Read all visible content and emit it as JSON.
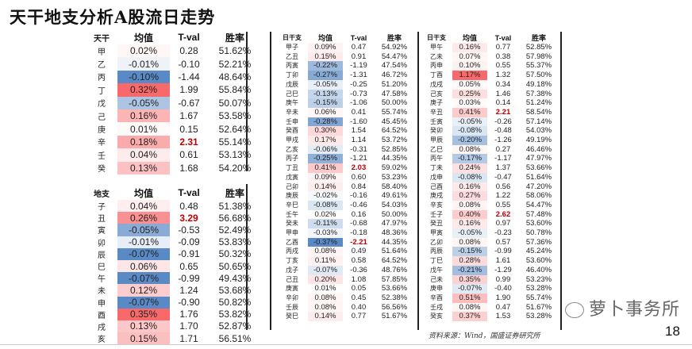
{
  "title": "天干地支分析A股流日走势",
  "colors": {
    "positive": "#f8696b",
    "negative": "#5a8ac6",
    "significant_text": "#c00000"
  },
  "tables": {
    "tiangan": {
      "headers": [
        "天干",
        "均值",
        "T-val",
        "胜率"
      ],
      "rows": [
        [
          "甲",
          "0.02%",
          "0.28",
          "51.62%"
        ],
        [
          "乙",
          "-0.01%",
          "-0.10",
          "52.21%"
        ],
        [
          "丙",
          "-0.10%",
          "-1.44",
          "48.64%"
        ],
        [
          "丁",
          "0.32%",
          "1.99",
          "55.84%"
        ],
        [
          "戊",
          "-0.05%",
          "-0.67",
          "50.07%"
        ],
        [
          "己",
          "0.16%",
          "1.67",
          "53.58%"
        ],
        [
          "庚",
          "0.01%",
          "0.15",
          "52.64%"
        ],
        [
          "辛",
          "0.18%",
          "2.31",
          "55.14%"
        ],
        [
          "壬",
          "0.04%",
          "0.61",
          "53.13%"
        ],
        [
          "癸",
          "0.13%",
          "1.68",
          "54.20%"
        ]
      ]
    },
    "dizhi": {
      "headers": [
        "地支",
        "均值",
        "T-val",
        "胜率"
      ],
      "rows": [
        [
          "子",
          "0.04%",
          "0.48",
          "51.38%"
        ],
        [
          "丑",
          "0.26%",
          "3.29",
          "56.68%"
        ],
        [
          "寅",
          "-0.05%",
          "-0.53",
          "52.49%"
        ],
        [
          "卯",
          "-0.01%",
          "-0.09",
          "53.83%"
        ],
        [
          "辰",
          "-0.07%",
          "-0.91",
          "50.32%"
        ],
        [
          "巳",
          "0.06%",
          "0.65",
          "50.65%"
        ],
        [
          "午",
          "-0.07%",
          "-0.99",
          "49.43%"
        ],
        [
          "未",
          "0.12%",
          "1.24",
          "53.68%"
        ],
        [
          "申",
          "-0.07%",
          "-0.90",
          "50.82%"
        ],
        [
          "酉",
          "0.35%",
          "1.76",
          "53.82%"
        ],
        [
          "戌",
          "0.13%",
          "1.70",
          "52.87%"
        ],
        [
          "亥",
          "0.15%",
          "1.71",
          "56.51%"
        ]
      ]
    },
    "ganzhi_1": {
      "headers": [
        "日干支",
        "均值",
        "T-val",
        "胜率"
      ],
      "rows": [
        [
          "甲子",
          "0.09%",
          "0.47",
          "54.92%"
        ],
        [
          "乙丑",
          "0.15%",
          "0.91",
          "54.47%"
        ],
        [
          "丙寅",
          "-0.22%",
          "-1.19",
          "47.54%"
        ],
        [
          "丁卯",
          "-0.27%",
          "-1.31",
          "46.72%"
        ],
        [
          "戊辰",
          "-0.05%",
          "-0.25",
          "51.20%"
        ],
        [
          "己巳",
          "-0.13%",
          "-0.73",
          "47.58%"
        ],
        [
          "庚午",
          "-0.15%",
          "-1.06",
          "50.00%"
        ],
        [
          "辛未",
          "0.06%",
          "0.41",
          "55.74%"
        ],
        [
          "壬申",
          "-0.28%",
          "-1.60",
          "45.45%"
        ],
        [
          "癸酉",
          "0.30%",
          "1.54",
          "64.52%"
        ],
        [
          "甲戌",
          "0.17%",
          "1.14",
          "53.72%"
        ],
        [
          "乙亥",
          "-0.06%",
          "-0.31",
          "52.85%"
        ],
        [
          "丙子",
          "-0.25%",
          "-1.21",
          "44.35%"
        ],
        [
          "丁丑",
          "0.41%",
          "2.03",
          "59.02%"
        ],
        [
          "戊寅",
          "0.09%",
          "0.60",
          "53.23%"
        ],
        [
          "己卯",
          "0.14%",
          "0.84",
          "58.40%"
        ],
        [
          "庚辰",
          "-0.02%",
          "-0.16",
          "49.61%"
        ],
        [
          "辛巳",
          "-0.08%",
          "-0.46",
          "54.03%"
        ],
        [
          "壬午",
          "0.02%",
          "0.16",
          "50.00%"
        ],
        [
          "癸未",
          "-0.11%",
          "-0.68",
          "47.97%"
        ],
        [
          "甲申",
          "-0.03%",
          "-0.18",
          "48.36%"
        ],
        [
          "乙酉",
          "-0.37%",
          "-2.21",
          "44.35%"
        ],
        [
          "丙戌",
          "0.08%",
          "0.49",
          "51.64%"
        ],
        [
          "丁亥",
          "0.11%",
          "0.58",
          "64.52%"
        ],
        [
          "戊子",
          "-0.07%",
          "-0.36",
          "48.76%"
        ],
        [
          "己丑",
          "0.20%",
          "1.08",
          "57.85%"
        ],
        [
          "庚寅",
          "0.01%",
          "0.05",
          "53.66%"
        ],
        [
          "辛卯",
          "0.08%",
          "0.45",
          "52.38%"
        ],
        [
          "壬辰",
          "0.08%",
          "0.40",
          "56.56%"
        ],
        [
          "癸巳",
          "0.14%",
          "0.77",
          "51.67%"
        ]
      ]
    },
    "ganzhi_2": {
      "headers": [
        "日干支",
        "均值",
        "T-val",
        "胜率"
      ],
      "rows": [
        [
          "甲午",
          "0.16%",
          "0.77",
          "52.85%"
        ],
        [
          "乙未",
          "0.07%",
          "0.38",
          "57.98%"
        ],
        [
          "丙申",
          "0.10%",
          "0.55",
          "55.37%"
        ],
        [
          "丁酉",
          "1.17%",
          "1.32",
          "57.50%"
        ],
        [
          "戊戌",
          "0.05%",
          "0.34",
          "49.18%"
        ],
        [
          "己亥",
          "0.25%",
          "1.46",
          "57.38%"
        ],
        [
          "庚子",
          "0.03%",
          "0.14",
          "51.24%"
        ],
        [
          "辛丑",
          "0.41%",
          "2.21",
          "58.54%"
        ],
        [
          "壬寅",
          "-0.05%",
          "-0.26",
          "57.14%"
        ],
        [
          "癸卯",
          "-0.08%",
          "-0.48",
          "54.03%"
        ],
        [
          "甲辰",
          "-0.20%",
          "-1.26",
          "49.19%"
        ],
        [
          "乙巳",
          "0.08%",
          "0.27",
          "46.46%"
        ],
        [
          "丙午",
          "-0.17%",
          "-1.17",
          "47.97%"
        ],
        [
          "丁未",
          "0.24%",
          "1.37",
          "53.66%"
        ],
        [
          "戊申",
          "-0.08%",
          "-0.47",
          "51.64%"
        ],
        [
          "己酉",
          "0.16%",
          "0.56",
          "47.20%"
        ],
        [
          "庚戌",
          "0.27%",
          "1.22",
          "58.06%"
        ],
        [
          "辛亥",
          "0.08%",
          "0.55",
          "54.47%"
        ],
        [
          "壬子",
          "0.40%",
          "2.62",
          "57.48%"
        ],
        [
          "癸丑",
          "0.16%",
          "0.97",
          "53.60%"
        ],
        [
          "甲寅",
          "-0.05%",
          "-0.23",
          "50.78%"
        ],
        [
          "乙卯",
          "0.08%",
          "0.57",
          "57.36%"
        ],
        [
          "丙辰",
          "-0.15%",
          "-0.99",
          "45.24%"
        ],
        [
          "丁巳",
          "0.28%",
          "1.61",
          "53.60%"
        ],
        [
          "戊午",
          "-0.21%",
          "-1.29",
          "46.40%"
        ],
        [
          "己未",
          "0.35%",
          "0.99",
          "53.23%"
        ],
        [
          "庚申",
          "-0.07%",
          "-0.40",
          "53.28%"
        ],
        [
          "辛酉",
          "0.51%",
          "1.90",
          "55.74%"
        ],
        [
          "壬戌",
          "0.08%",
          "0.47",
          "51.67%"
        ],
        [
          "癸亥",
          "0.37%",
          "1.53",
          "53.28%"
        ]
      ]
    }
  },
  "source": "资料来源：Wind，国盛证券研究所",
  "watermark": "萝卜事务所",
  "page_number": "18"
}
